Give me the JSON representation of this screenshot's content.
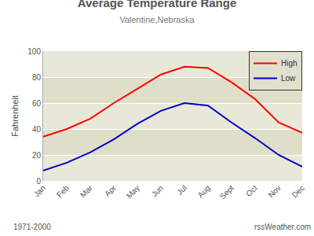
{
  "chart_data": {
    "type": "line",
    "title": "Average Temperature Range",
    "subtitle": "Valentine,Nebraska",
    "ylabel": "Fahrenheit",
    "categories": [
      "Jan",
      "Feb",
      "Mar",
      "Apr",
      "May",
      "Jun",
      "Jul",
      "Aug",
      "Sept",
      "Oct",
      "Nov",
      "Dec"
    ],
    "series": [
      {
        "name": "High",
        "color": "#ff0000",
        "values": [
          34,
          40,
          48,
          60,
          71,
          82,
          88,
          87,
          76,
          63,
          45,
          37
        ]
      },
      {
        "name": "Low",
        "color": "#0000cc",
        "values": [
          8,
          14,
          22,
          32,
          44,
          54,
          60,
          58,
          45,
          33,
          20,
          11
        ]
      }
    ],
    "ylim": [
      0,
      100
    ],
    "yticks": [
      0,
      20,
      40,
      60,
      80,
      100
    ],
    "grid": true,
    "legend": "upper right",
    "annotations": [
      "1971-2000",
      "rssWeather.com"
    ]
  }
}
